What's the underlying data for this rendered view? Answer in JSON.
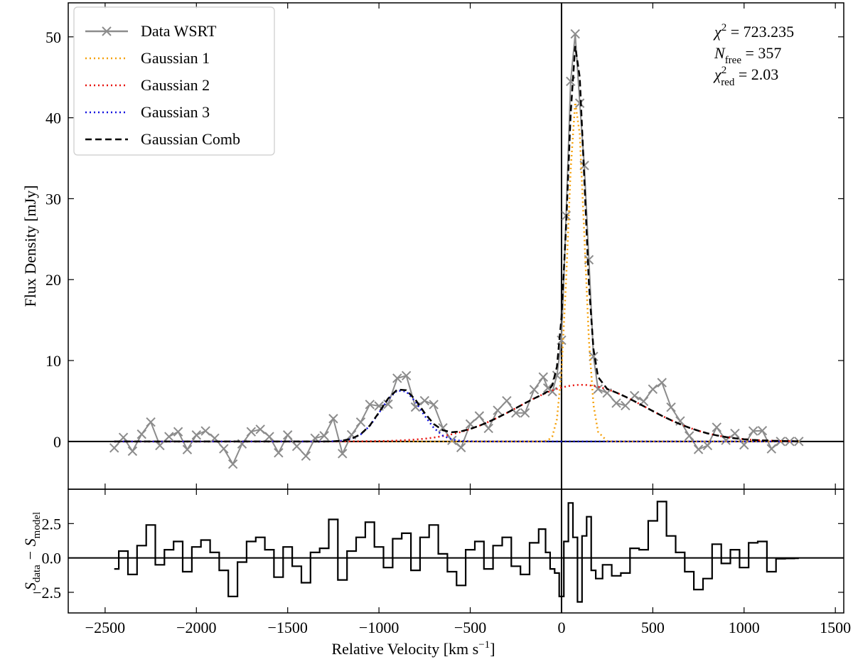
{
  "chart_data": [
    {
      "type": "line",
      "ylabel": "Flux Density [mJy]",
      "legend": "upper left",
      "x": [
        -2450,
        -2400,
        -2350,
        -2300,
        -2250,
        -2200,
        -2150,
        -2100,
        -2050,
        -2000,
        -1950,
        -1900,
        -1850,
        -1800,
        -1750,
        -1700,
        -1650,
        -1600,
        -1550,
        -1500,
        -1450,
        -1400,
        -1350,
        -1300,
        -1250,
        -1200,
        -1150,
        -1100,
        -1050,
        -1000,
        -950,
        -900,
        -850,
        -800,
        -750,
        -700,
        -650,
        -600,
        -550,
        -500,
        -450,
        -400,
        -350,
        -300,
        -250,
        -200,
        -150,
        -100,
        -75,
        -50,
        -25,
        0,
        25,
        50,
        75,
        100,
        125,
        150,
        175,
        200,
        250,
        300,
        350,
        400,
        450,
        500,
        550,
        600,
        650,
        700,
        750,
        800,
        850,
        900,
        950,
        1000,
        1050,
        1100,
        1150,
        1200,
        1250,
        1300
      ],
      "xlim": [
        -2702,
        1546
      ],
      "ylim": [
        -5.9,
        54.2
      ],
      "yticks": [
        0,
        10,
        20,
        30,
        40,
        50
      ],
      "series": [
        {
          "name": "Data WSRT",
          "color": "#8c8c8c",
          "linestyle": "solid",
          "marker": "x",
          "values": [
            -0.8,
            0.5,
            -1.2,
            0.9,
            2.4,
            -0.5,
            0.6,
            1.2,
            -1.0,
            0.8,
            1.3,
            0.4,
            -0.9,
            -2.8,
            -0.3,
            1.2,
            1.5,
            0.6,
            -1.4,
            0.8,
            -0.6,
            -1.8,
            0.4,
            0.7,
            2.82,
            -1.5,
            0.83,
            2.39,
            4.57,
            4.38,
            4.6,
            7.81,
            8.13,
            4.25,
            5.03,
            4.56,
            1.68,
            0.14,
            -0.75,
            2.15,
            3.15,
            1.62,
            3.85,
            5.02,
            3.52,
            3.53,
            6.41,
            7.96,
            6.6,
            6.16,
            8.16,
            12.51,
            27.9,
            44.5,
            50.36,
            41.8,
            34.1,
            22.45,
            10.5,
            6.47,
            5.99,
            4.74,
            4.43,
            5.66,
            4.96,
            6.46,
            7.27,
            4.23,
            2.53,
            0.69,
            -0.98,
            -0.5,
            1.75,
            0.15,
            0.99,
            -0.42,
            1.29,
            1.33,
            -0.91,
            0,
            0,
            0
          ]
        },
        {
          "name": "Gaussian 1",
          "color": "#f5a00a",
          "linestyle": "dotted",
          "values": [
            0,
            0,
            0,
            0,
            0,
            0,
            0,
            0,
            0,
            0,
            0,
            0,
            0,
            0,
            0,
            0,
            0,
            0,
            0,
            0,
            0,
            0,
            0,
            0,
            0,
            0,
            0,
            0,
            0,
            0,
            0,
            0,
            0,
            0,
            0,
            0,
            0,
            0,
            0,
            0,
            0,
            0,
            0,
            0,
            0,
            0,
            0,
            0.01,
            0.11,
            0.65,
            2.76,
            8.65,
            19.9,
            33.6,
            41.9,
            38.0,
            25.5,
            12.5,
            4.52,
            1.2,
            0.03,
            0,
            0,
            0,
            0,
            0,
            0,
            0,
            0,
            0,
            0,
            0,
            0,
            0,
            0,
            0,
            0,
            0,
            0,
            0,
            0,
            0
          ]
        },
        {
          "name": "Gaussian 2",
          "color": "#e8140f",
          "linestyle": "dotted",
          "values": [
            0,
            0,
            0,
            0,
            0,
            0,
            0,
            0,
            0,
            0,
            0,
            0,
            0,
            0,
            0,
            0,
            0,
            0,
            0,
            0,
            0,
            0,
            0,
            0,
            0,
            0.01,
            0.01,
            0.02,
            0.03,
            0.05,
            0.07,
            0.11,
            0.16,
            0.24,
            0.34,
            0.48,
            0.66,
            0.89,
            1.18,
            1.53,
            1.95,
            2.42,
            2.95,
            3.52,
            4.12,
            4.73,
            5.31,
            5.85,
            6.09,
            6.31,
            6.5,
            6.66,
            6.8,
            6.9,
            6.96,
            7.0,
            7.0,
            6.95,
            6.88,
            6.77,
            6.46,
            6.04,
            5.53,
            4.96,
            4.36,
            3.76,
            3.17,
            2.63,
            2.13,
            1.69,
            1.32,
            1.0,
            0.75,
            0.55,
            0.39,
            0.28,
            0.19,
            0.13,
            0.09,
            0.06,
            0.04,
            0.02
          ]
        },
        {
          "name": "Gaussian 3",
          "color": "#1414e0",
          "linestyle": "dotted",
          "values": [
            0,
            0,
            0,
            0,
            0,
            0,
            0,
            0,
            0,
            0,
            0,
            0,
            0,
            0,
            0,
            0,
            0,
            0,
            0,
            0,
            0,
            0,
            0,
            0,
            0.02,
            0.09,
            0.32,
            0.87,
            1.94,
            3.53,
            5.23,
            6.3,
            6.17,
            4.91,
            3.19,
            1.68,
            0.72,
            0.25,
            0.07,
            0.02,
            0,
            0,
            0,
            0,
            0,
            0,
            0,
            0,
            0,
            0,
            0,
            0,
            0,
            0,
            0,
            0,
            0,
            0,
            0,
            0,
            0,
            0,
            0,
            0,
            0,
            0,
            0,
            0,
            0,
            0,
            0,
            0,
            0,
            0,
            0,
            0,
            0,
            0,
            0,
            0,
            0,
            0
          ]
        },
        {
          "name": "Gaussian Comb",
          "color": "#000000",
          "linestyle": "dashed",
          "values": [
            0,
            0,
            0,
            0,
            0,
            0,
            0,
            0,
            0,
            0,
            0,
            0,
            0,
            0,
            0,
            0,
            0,
            0,
            0,
            0,
            0,
            0,
            0,
            0,
            0.02,
            0.1,
            0.33,
            0.89,
            1.97,
            3.58,
            5.3,
            6.41,
            6.33,
            5.15,
            3.53,
            2.16,
            1.38,
            1.14,
            1.25,
            1.55,
            1.95,
            2.42,
            2.95,
            3.52,
            4.12,
            4.73,
            5.31,
            5.86,
            6.2,
            6.96,
            9.26,
            15.31,
            26.7,
            40.5,
            48.86,
            45.0,
            32.5,
            19.45,
            11.4,
            7.97,
            6.49,
            6.04,
            5.53,
            4.96,
            4.36,
            3.76,
            3.17,
            2.63,
            2.13,
            1.69,
            1.32,
            1.0,
            0.75,
            0.55,
            0.39,
            0.28,
            0.19,
            0.13,
            0.09,
            0.06,
            0.04,
            0.02
          ]
        }
      ],
      "annotations": [
        {
          "symbol": "χ",
          "sup": "2",
          "text": " = 723.235"
        },
        {
          "symbol": "N",
          "sub": "free",
          "text": " = 357"
        },
        {
          "symbol": "χ",
          "sup": "2",
          "sub": "red",
          "text": " = 2.03"
        }
      ]
    },
    {
      "type": "step",
      "ylabel": {
        "s1": "S",
        "sub1": "data",
        "mid": " − S",
        "sub2": "model"
      },
      "xlabel": {
        "text": "Relative Velocity [km s",
        "sup": "−1",
        "end": "]"
      },
      "x": [
        -2450,
        -2400,
        -2350,
        -2300,
        -2250,
        -2200,
        -2150,
        -2100,
        -2050,
        -2000,
        -1950,
        -1900,
        -1850,
        -1800,
        -1750,
        -1700,
        -1650,
        -1600,
        -1550,
        -1500,
        -1450,
        -1400,
        -1350,
        -1300,
        -1250,
        -1200,
        -1150,
        -1100,
        -1050,
        -1000,
        -950,
        -900,
        -850,
        -800,
        -750,
        -700,
        -650,
        -600,
        -550,
        -500,
        -450,
        -400,
        -350,
        -300,
        -250,
        -200,
        -150,
        -100,
        -75,
        -50,
        -25,
        0,
        25,
        50,
        75,
        100,
        125,
        150,
        175,
        200,
        250,
        300,
        350,
        400,
        450,
        500,
        550,
        600,
        650,
        700,
        750,
        800,
        850,
        900,
        950,
        1000,
        1050,
        1100,
        1150,
        1200,
        1250,
        1300
      ],
      "values": [
        -0.8,
        0.5,
        -1.2,
        0.9,
        2.4,
        -0.5,
        0.6,
        1.2,
        -1.0,
        0.8,
        1.3,
        0.4,
        -0.9,
        -2.8,
        -0.3,
        1.2,
        1.5,
        0.6,
        -1.4,
        0.8,
        -0.6,
        -1.8,
        0.4,
        0.7,
        2.8,
        -1.6,
        0.5,
        1.5,
        2.6,
        0.8,
        -0.7,
        1.4,
        1.8,
        -0.9,
        1.5,
        2.4,
        0.3,
        -1.0,
        -2.0,
        0.6,
        1.2,
        -0.8,
        0.9,
        1.5,
        -0.6,
        -1.2,
        1.1,
        2.1,
        0.4,
        -0.8,
        -1.1,
        -2.8,
        1.2,
        4.0,
        1.5,
        -3.2,
        1.6,
        3.0,
        -0.9,
        -1.5,
        -0.5,
        -1.3,
        -1.1,
        0.7,
        0.6,
        2.7,
        4.1,
        1.6,
        0.4,
        -1.0,
        -2.3,
        -1.5,
        1.0,
        -0.4,
        0.6,
        -0.7,
        1.1,
        1.2,
        -1.0,
        -0.06,
        -0.04,
        -0.02
      ],
      "color": "#000000",
      "xlim": [
        -2702,
        1546
      ],
      "ylim": [
        -4.0,
        5.0
      ],
      "xticks": [
        {
          "value": -2500,
          "label": "−2500"
        },
        {
          "value": -2000,
          "label": "−2000"
        },
        {
          "value": -1500,
          "label": "−1500"
        },
        {
          "value": -1000,
          "label": "−1000"
        },
        {
          "value": -500,
          "label": "−500"
        },
        0,
        500,
        1000,
        1500
      ],
      "yticks": [
        {
          "value": -2.5,
          "label": "−2.5"
        },
        {
          "value": 0,
          "label": "0.0"
        },
        {
          "value": 2.5,
          "label": "2.5"
        }
      ]
    }
  ]
}
